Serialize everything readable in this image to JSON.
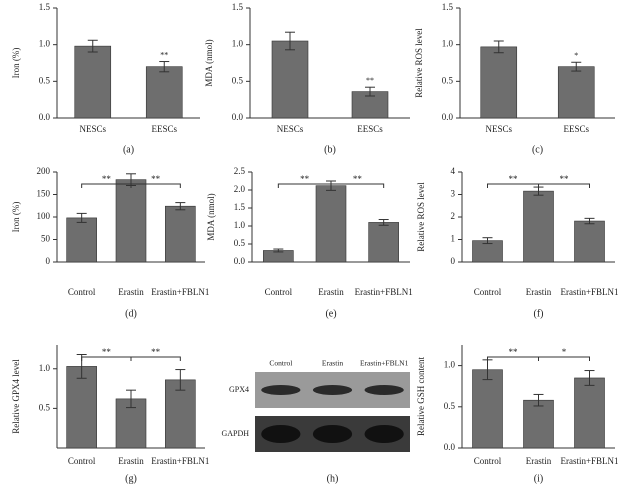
{
  "chart_data": [
    {
      "type": "bar",
      "label": "(a)",
      "ylabel": "Iron (%)",
      "categories": [
        "NESCs",
        "EESCs"
      ],
      "values": [
        0.98,
        0.7
      ],
      "errors": [
        0.08,
        0.07
      ],
      "color": "#6e6e6e",
      "ylim": [
        0,
        1.5
      ],
      "yticks": [
        {
          "value": 0,
          "label": "0.0"
        },
        {
          "value": 0.5,
          "label": "0.5"
        },
        {
          "value": 1,
          "label": "1.0"
        },
        {
          "value": 1.5,
          "label": "1.5"
        }
      ],
      "significance": [
        {
          "at": 1,
          "text": "**"
        }
      ]
    },
    {
      "type": "bar",
      "label": "(b)",
      "ylabel": "MDA (nmol)",
      "categories": [
        "NESCs",
        "EESCs"
      ],
      "values": [
        1.05,
        0.36
      ],
      "errors": [
        0.12,
        0.06
      ],
      "color": "#6e6e6e",
      "ylim": [
        0,
        1.5
      ],
      "yticks": [
        {
          "value": 0,
          "label": "0.0"
        },
        {
          "value": 0.5,
          "label": "0.5"
        },
        {
          "value": 1,
          "label": "1.0"
        },
        {
          "value": 1.5,
          "label": "1.5"
        }
      ],
      "significance": [
        {
          "at": 1,
          "text": "**"
        }
      ]
    },
    {
      "type": "bar",
      "label": "(c)",
      "ylabel": "Relative ROS level",
      "categories": [
        "NESCs",
        "EESCs"
      ],
      "values": [
        0.97,
        0.7
      ],
      "errors": [
        0.08,
        0.06
      ],
      "color": "#6e6e6e",
      "ylim": [
        0,
        1.5
      ],
      "yticks": [
        {
          "value": 0,
          "label": "0.0"
        },
        {
          "value": 0.5,
          "label": "0.5"
        },
        {
          "value": 1,
          "label": "1.0"
        },
        {
          "value": 1.5,
          "label": "1.5"
        }
      ],
      "significance": [
        {
          "at": 1,
          "text": "*"
        }
      ]
    },
    {
      "type": "bar",
      "label": "(d)",
      "ylabel": "Iron (%)",
      "categories": [
        "Control",
        "Erastin",
        "Erastin+FBLN1"
      ],
      "values": [
        98,
        183,
        124
      ],
      "errors": [
        10,
        13,
        8
      ],
      "color": "#6e6e6e",
      "ylim": [
        0,
        200
      ],
      "yticks": [
        0,
        50,
        100,
        150,
        200
      ],
      "significance": [
        {
          "from": 0,
          "to": 1,
          "text": "**"
        },
        {
          "from": 1,
          "to": 2,
          "text": "**"
        }
      ]
    },
    {
      "type": "bar",
      "label": "(e)",
      "ylabel": "MDA (nmol)",
      "categories": [
        "Control",
        "Erastin",
        "Erastin+FBLN1"
      ],
      "values": [
        0.32,
        2.12,
        1.1
      ],
      "errors": [
        0.04,
        0.13,
        0.08
      ],
      "color": "#6e6e6e",
      "ylim": [
        0,
        2.5
      ],
      "yticks": [
        {
          "value": 0,
          "label": "0.0"
        },
        {
          "value": 0.5,
          "label": "0.5"
        },
        {
          "value": 1,
          "label": "1.0"
        },
        {
          "value": 1.5,
          "label": "1.5"
        },
        {
          "value": 2,
          "label": "2.0"
        },
        {
          "value": 2.5,
          "label": "2.5"
        }
      ],
      "significance": [
        {
          "from": 0,
          "to": 1,
          "text": "**"
        },
        {
          "from": 1,
          "to": 2,
          "text": "**"
        }
      ]
    },
    {
      "type": "bar",
      "label": "(f)",
      "ylabel": "Relative ROS level",
      "categories": [
        "Control",
        "Erastin",
        "Erastin+FBLN1"
      ],
      "values": [
        0.95,
        3.15,
        1.82
      ],
      "errors": [
        0.13,
        0.18,
        0.12
      ],
      "color": "#6e6e6e",
      "ylim": [
        0,
        4
      ],
      "yticks": [
        0,
        1,
        2,
        3,
        4
      ],
      "significance": [
        {
          "from": 0,
          "to": 1,
          "text": "**"
        },
        {
          "from": 1,
          "to": 2,
          "text": "**"
        }
      ]
    },
    {
      "type": "bar",
      "label": "(g)",
      "ylabel": "Relative GPX4 level",
      "categories": [
        "Control",
        "Erastin",
        "Erastin+FBLN1"
      ],
      "values": [
        1.03,
        0.62,
        0.86
      ],
      "errors": [
        0.15,
        0.11,
        0.13
      ],
      "color": "#6e6e6e",
      "ylim": [
        0,
        1.3
      ],
      "yticks": [
        {
          "value": 0.5,
          "label": "0.5"
        },
        {
          "value": 1,
          "label": "1.0"
        }
      ],
      "significance": [
        {
          "from": 0,
          "to": 1,
          "text": "**"
        },
        {
          "from": 1,
          "to": 2,
          "text": "**"
        }
      ]
    },
    {
      "type": "blot",
      "label": "(h)",
      "categories": [
        "Control",
        "Erastin",
        "Erastin+FBLN1"
      ],
      "rows": [
        "GPX4",
        "GAPDH"
      ]
    },
    {
      "type": "bar",
      "label": "(i)",
      "ylabel": "Relative GSH content",
      "categories": [
        "Control",
        "Erastin",
        "Erastin+FBLN1"
      ],
      "values": [
        0.95,
        0.58,
        0.85
      ],
      "errors": [
        0.12,
        0.07,
        0.09
      ],
      "color": "#6e6e6e",
      "ylim": [
        0,
        1.25
      ],
      "yticks": [
        {
          "value": 0,
          "label": "0.0"
        },
        {
          "value": 0.5,
          "label": "0.5"
        },
        {
          "value": 1,
          "label": "1.0"
        }
      ],
      "significance": [
        {
          "from": 0,
          "to": 1,
          "text": "**"
        },
        {
          "from": 1,
          "to": 2,
          "text": "*"
        }
      ]
    }
  ]
}
